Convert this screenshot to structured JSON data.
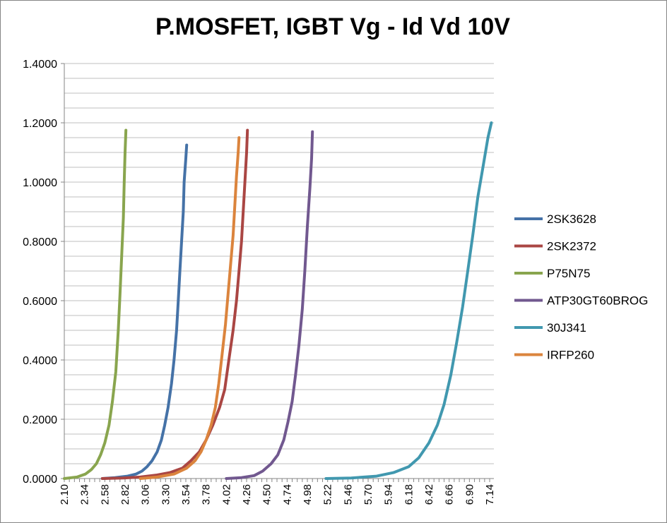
{
  "chart_data": {
    "type": "line",
    "title": "P.MOSFET, IGBT Vg - Id Vd 10V",
    "xlabel": "",
    "ylabel": "",
    "xlim": [
      2.1,
      7.19
    ],
    "ylim": [
      0,
      1.4
    ],
    "y_ticks": [
      "0.0000",
      "0.2000",
      "0.4000",
      "0.6000",
      "0.8000",
      "1.0000",
      "1.2000",
      "1.4000"
    ],
    "x_ticks": [
      "2.10",
      "2.34",
      "2.58",
      "2.82",
      "3.06",
      "3.30",
      "3.54",
      "3.78",
      "4.02",
      "4.26",
      "4.50",
      "4.74",
      "4.98",
      "5.22",
      "5.46",
      "5.70",
      "5.94",
      "6.18",
      "6.42",
      "6.66",
      "6.90",
      "7.14"
    ],
    "grid": "horizontal",
    "legend_position": "right",
    "series": [
      {
        "name": "2SK3628",
        "color": "#4572a7",
        "points": [
          [
            2.55,
            0.0
          ],
          [
            2.7,
            0.003
          ],
          [
            2.85,
            0.008
          ],
          [
            2.95,
            0.015
          ],
          [
            3.02,
            0.025
          ],
          [
            3.08,
            0.04
          ],
          [
            3.14,
            0.06
          ],
          [
            3.2,
            0.09
          ],
          [
            3.25,
            0.13
          ],
          [
            3.29,
            0.18
          ],
          [
            3.33,
            0.24
          ],
          [
            3.37,
            0.32
          ],
          [
            3.4,
            0.4
          ],
          [
            3.43,
            0.5
          ],
          [
            3.45,
            0.6
          ],
          [
            3.47,
            0.7
          ],
          [
            3.49,
            0.8
          ],
          [
            3.51,
            0.9
          ],
          [
            3.52,
            1.0
          ],
          [
            3.54,
            1.08
          ],
          [
            3.55,
            1.125
          ]
        ]
      },
      {
        "name": "2SK2372",
        "color": "#aa4643",
        "points": [
          [
            2.55,
            0.0
          ],
          [
            2.8,
            0.002
          ],
          [
            3.0,
            0.005
          ],
          [
            3.2,
            0.012
          ],
          [
            3.35,
            0.02
          ],
          [
            3.5,
            0.035
          ],
          [
            3.6,
            0.06
          ],
          [
            3.7,
            0.09
          ],
          [
            3.78,
            0.13
          ],
          [
            3.86,
            0.18
          ],
          [
            3.94,
            0.24
          ],
          [
            4.0,
            0.3
          ],
          [
            4.05,
            0.4
          ],
          [
            4.1,
            0.5
          ],
          [
            4.14,
            0.6
          ],
          [
            4.17,
            0.7
          ],
          [
            4.2,
            0.8
          ],
          [
            4.22,
            0.9
          ],
          [
            4.24,
            1.0
          ],
          [
            4.26,
            1.1
          ],
          [
            4.27,
            1.175
          ]
        ]
      },
      {
        "name": "P75N75",
        "color": "#89a54e",
        "points": [
          [
            2.1,
            0.0
          ],
          [
            2.25,
            0.005
          ],
          [
            2.35,
            0.015
          ],
          [
            2.42,
            0.03
          ],
          [
            2.48,
            0.05
          ],
          [
            2.53,
            0.08
          ],
          [
            2.58,
            0.12
          ],
          [
            2.63,
            0.18
          ],
          [
            2.67,
            0.26
          ],
          [
            2.71,
            0.36
          ],
          [
            2.74,
            0.5
          ],
          [
            2.76,
            0.62
          ],
          [
            2.78,
            0.75
          ],
          [
            2.8,
            0.88
          ],
          [
            2.81,
            1.0
          ],
          [
            2.82,
            1.1
          ],
          [
            2.83,
            1.175
          ]
        ]
      },
      {
        "name": "ATP30GT60BROG",
        "color": "#71588f",
        "points": [
          [
            4.02,
            0.0
          ],
          [
            4.2,
            0.003
          ],
          [
            4.35,
            0.01
          ],
          [
            4.45,
            0.025
          ],
          [
            4.55,
            0.05
          ],
          [
            4.63,
            0.08
          ],
          [
            4.7,
            0.13
          ],
          [
            4.75,
            0.19
          ],
          [
            4.8,
            0.26
          ],
          [
            4.84,
            0.35
          ],
          [
            4.88,
            0.45
          ],
          [
            4.92,
            0.57
          ],
          [
            4.95,
            0.7
          ],
          [
            4.98,
            0.85
          ],
          [
            5.01,
            0.98
          ],
          [
            5.03,
            1.08
          ],
          [
            5.04,
            1.17
          ]
        ]
      },
      {
        "name": "30J341",
        "color": "#4198af",
        "points": [
          [
            5.2,
            0.0
          ],
          [
            5.5,
            0.002
          ],
          [
            5.8,
            0.008
          ],
          [
            6.0,
            0.02
          ],
          [
            6.18,
            0.04
          ],
          [
            6.3,
            0.07
          ],
          [
            6.42,
            0.12
          ],
          [
            6.52,
            0.18
          ],
          [
            6.6,
            0.25
          ],
          [
            6.68,
            0.35
          ],
          [
            6.75,
            0.46
          ],
          [
            6.82,
            0.58
          ],
          [
            6.88,
            0.7
          ],
          [
            6.94,
            0.82
          ],
          [
            7.0,
            0.95
          ],
          [
            7.06,
            1.05
          ],
          [
            7.12,
            1.15
          ],
          [
            7.16,
            1.2
          ]
        ]
      },
      {
        "name": "IRFP260",
        "color": "#db843d",
        "points": [
          [
            3.0,
            0.0
          ],
          [
            3.2,
            0.005
          ],
          [
            3.4,
            0.015
          ],
          [
            3.55,
            0.035
          ],
          [
            3.65,
            0.06
          ],
          [
            3.72,
            0.09
          ],
          [
            3.78,
            0.13
          ],
          [
            3.84,
            0.18
          ],
          [
            3.89,
            0.24
          ],
          [
            3.93,
            0.32
          ],
          [
            3.97,
            0.42
          ],
          [
            4.01,
            0.52
          ],
          [
            4.04,
            0.62
          ],
          [
            4.07,
            0.72
          ],
          [
            4.1,
            0.82
          ],
          [
            4.12,
            0.92
          ],
          [
            4.14,
            1.02
          ],
          [
            4.16,
            1.1
          ],
          [
            4.17,
            1.15
          ]
        ]
      }
    ]
  }
}
